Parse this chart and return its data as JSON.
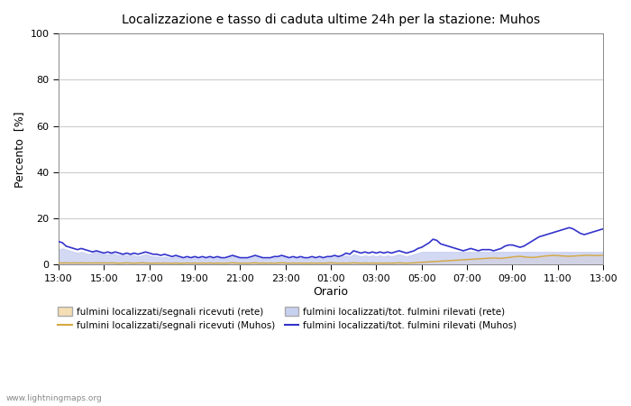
{
  "title": "Localizzazione e tasso di caduta ultime 24h per la stazione: Muhos",
  "xlabel": "Orario",
  "ylabel": "Percento  [%]",
  "ylim": [
    0,
    100
  ],
  "yticks": [
    0,
    20,
    40,
    60,
    80,
    100
  ],
  "xtick_labels": [
    "13:00",
    "15:00",
    "17:00",
    "19:00",
    "21:00",
    "23:00",
    "01:00",
    "03:00",
    "05:00",
    "07:00",
    "09:00",
    "11:00",
    "13:00"
  ],
  "background_color": "#ffffff",
  "plot_bg_color": "#ffffff",
  "grid_color": "#cccccc",
  "watermark": "www.lightningmaps.org",
  "fill_rete_color": "#f5deb3",
  "fill_muhos_color": "#c8d0f0",
  "line_segnali_rete_color": "#d4a843",
  "line_segnali_muhos_color": "#d4a843",
  "line_fulmini_muhos_color": "#3333cc",
  "legend": [
    {
      "label": "fulmini localizzati/segnali ricevuti (rete)",
      "type": "fill",
      "color": "#f5deb3"
    },
    {
      "label": "fulmini localizzati/segnali ricevuti (Muhos)",
      "type": "line",
      "color": "#d4a843"
    },
    {
      "label": "fulmini localizzati/tot. fulmini rilevati (rete)",
      "type": "fill",
      "color": "#c8d0f0"
    },
    {
      "label": "fulmini localizzati/tot. fulmini rilevati (Muhos)",
      "type": "line",
      "color": "#3333cc"
    }
  ],
  "n_points": 145,
  "segnali_rete": [
    1.2,
    1.1,
    1.3,
    1.0,
    1.1,
    1.2,
    1.3,
    1.1,
    1.0,
    1.1,
    1.2,
    1.3,
    1.1,
    1.0,
    1.1,
    1.2,
    1.0,
    1.1,
    1.2,
    1.1,
    1.0,
    1.1,
    1.2,
    1.1,
    1.0,
    1.0,
    1.1,
    1.0,
    1.1,
    1.0,
    1.0,
    1.1,
    1.0,
    1.0,
    1.1,
    1.0,
    1.1,
    1.0,
    1.1,
    1.0,
    1.1,
    1.0,
    1.1,
    1.0,
    1.0,
    1.1,
    1.2,
    1.1,
    1.0,
    1.1,
    1.0,
    1.1,
    1.2,
    1.0,
    1.1,
    1.0,
    1.1,
    1.0,
    1.1,
    1.2,
    1.1,
    1.0,
    1.1,
    1.0,
    1.1,
    1.0,
    1.0,
    1.1,
    1.0,
    1.1,
    1.0,
    1.1,
    1.2,
    1.1,
    1.0,
    1.1,
    1.0,
    1.1,
    1.2,
    1.1,
    1.0,
    1.1,
    1.0,
    1.1,
    1.0,
    1.1,
    1.0,
    1.1,
    1.0,
    1.1,
    1.2,
    1.1,
    1.0,
    1.1,
    1.2,
    1.3,
    1.4,
    1.5,
    1.6,
    1.7,
    1.8,
    1.9,
    2.0,
    2.1,
    2.2,
    2.3,
    2.4,
    2.5,
    2.6,
    2.7,
    2.8,
    2.9,
    3.0,
    3.1,
    3.2,
    3.3,
    3.2,
    3.1,
    3.3,
    3.5,
    3.7,
    3.9,
    4.0,
    3.8,
    3.6,
    3.5,
    3.6,
    3.8,
    4.0,
    4.2,
    4.3,
    4.4,
    4.3,
    4.2,
    4.1,
    4.0,
    4.1,
    4.2,
    4.3,
    4.4,
    4.5,
    4.4,
    4.3,
    4.4,
    4.5
  ],
  "segnali_muhos": [
    0.8,
    0.7,
    0.8,
    0.7,
    0.8,
    0.7,
    0.8,
    0.7,
    0.8,
    0.7,
    0.8,
    0.7,
    0.8,
    0.7,
    0.8,
    0.7,
    0.6,
    0.7,
    0.8,
    0.7,
    0.6,
    0.7,
    0.8,
    0.7,
    0.6,
    0.6,
    0.7,
    0.6,
    0.7,
    0.6,
    0.6,
    0.7,
    0.6,
    0.6,
    0.7,
    0.6,
    0.7,
    0.6,
    0.7,
    0.6,
    0.7,
    0.6,
    0.7,
    0.6,
    0.6,
    0.7,
    0.8,
    0.7,
    0.6,
    0.7,
    0.6,
    0.7,
    0.8,
    0.6,
    0.7,
    0.6,
    0.7,
    0.6,
    0.7,
    0.8,
    0.7,
    0.6,
    0.7,
    0.6,
    0.7,
    0.6,
    0.6,
    0.7,
    0.6,
    0.7,
    0.6,
    0.7,
    0.8,
    0.7,
    0.6,
    0.7,
    0.6,
    0.7,
    0.8,
    0.7,
    0.6,
    0.7,
    0.6,
    0.7,
    0.6,
    0.7,
    0.6,
    0.7,
    0.6,
    0.7,
    0.8,
    0.7,
    0.6,
    0.7,
    0.8,
    0.9,
    1.0,
    1.1,
    1.2,
    1.3,
    1.4,
    1.5,
    1.6,
    1.7,
    1.8,
    1.9,
    2.0,
    2.1,
    2.2,
    2.3,
    2.4,
    2.5,
    2.6,
    2.7,
    2.8,
    2.9,
    2.8,
    2.7,
    2.9,
    3.1,
    3.3,
    3.5,
    3.6,
    3.4,
    3.2,
    3.1,
    3.2,
    3.4,
    3.6,
    3.8,
    3.9,
    4.0,
    3.9,
    3.8,
    3.7,
    3.6,
    3.7,
    3.8,
    3.9,
    4.0,
    4.1,
    4.0,
    3.9,
    4.0,
    4.1
  ],
  "fulmini_rete": [
    6.5,
    7.0,
    6.5,
    6.0,
    5.5,
    5.0,
    5.5,
    5.0,
    4.5,
    5.0,
    5.5,
    5.0,
    4.5,
    4.5,
    5.0,
    4.5,
    4.0,
    4.5,
    4.0,
    4.5,
    4.0,
    3.5,
    4.0,
    4.5,
    4.0,
    3.5,
    3.5,
    3.0,
    3.5,
    3.0,
    3.0,
    3.5,
    3.0,
    2.5,
    3.0,
    2.5,
    3.0,
    2.5,
    3.0,
    2.5,
    3.0,
    2.5,
    3.0,
    2.5,
    2.5,
    3.0,
    3.5,
    3.0,
    2.5,
    2.5,
    2.5,
    3.0,
    3.5,
    3.0,
    2.5,
    2.5,
    2.5,
    3.0,
    3.0,
    3.5,
    3.0,
    2.5,
    3.0,
    2.5,
    3.0,
    2.5,
    2.5,
    3.0,
    2.5,
    3.0,
    2.5,
    3.0,
    3.0,
    3.5,
    3.0,
    3.5,
    4.0,
    3.5,
    4.5,
    4.0,
    3.5,
    4.0,
    3.5,
    4.0,
    3.5,
    4.0,
    3.5,
    4.0,
    3.5,
    4.0,
    4.5,
    4.0,
    3.5,
    4.0,
    4.5,
    5.0,
    5.5,
    5.5,
    5.5,
    5.5,
    5.5,
    5.5,
    5.5,
    5.5,
    5.5,
    5.5,
    5.5,
    5.5,
    5.5,
    5.5,
    5.5,
    5.5,
    5.5,
    5.5,
    5.5,
    5.5,
    5.5,
    5.5,
    5.5,
    5.5,
    5.5,
    5.5,
    5.5,
    5.5,
    5.5,
    5.5,
    5.5,
    5.5,
    5.5,
    5.5,
    5.5,
    5.5,
    5.5,
    5.5,
    5.5,
    5.5,
    5.5,
    5.5,
    5.5,
    5.5,
    5.5,
    5.5,
    5.5,
    5.5,
    5.5
  ],
  "fulmini_muhos": [
    10.0,
    9.5,
    8.0,
    7.5,
    7.0,
    6.5,
    7.0,
    6.5,
    6.0,
    5.5,
    6.0,
    5.5,
    5.0,
    5.5,
    5.0,
    5.5,
    5.0,
    4.5,
    5.0,
    4.5,
    5.0,
    4.5,
    5.0,
    5.5,
    5.0,
    4.5,
    4.5,
    4.0,
    4.5,
    4.0,
    3.5,
    4.0,
    3.5,
    3.0,
    3.5,
    3.0,
    3.5,
    3.0,
    3.5,
    3.0,
    3.5,
    3.0,
    3.5,
    3.0,
    3.0,
    3.5,
    4.0,
    3.5,
    3.0,
    3.0,
    3.0,
    3.5,
    4.0,
    3.5,
    3.0,
    3.0,
    3.0,
    3.5,
    3.5,
    4.0,
    3.5,
    3.0,
    3.5,
    3.0,
    3.5,
    3.0,
    3.0,
    3.5,
    3.0,
    3.5,
    3.0,
    3.5,
    3.5,
    4.0,
    3.5,
    4.0,
    5.0,
    4.5,
    6.0,
    5.5,
    5.0,
    5.5,
    5.0,
    5.5,
    5.0,
    5.5,
    5.0,
    5.5,
    5.0,
    5.5,
    6.0,
    5.5,
    5.0,
    5.5,
    6.0,
    7.0,
    7.5,
    8.5,
    9.5,
    11.0,
    10.5,
    9.0,
    8.5,
    8.0,
    7.5,
    7.0,
    6.5,
    6.0,
    6.5,
    7.0,
    6.5,
    6.0,
    6.5,
    6.5,
    6.5,
    6.0,
    6.5,
    7.0,
    8.0,
    8.5,
    8.5,
    8.0,
    7.5,
    8.0,
    9.0,
    10.0,
    11.0,
    12.0,
    12.5,
    13.0,
    13.5,
    14.0,
    14.5,
    15.0,
    15.5,
    16.0,
    15.5,
    14.5,
    13.5,
    13.0,
    13.5,
    14.0,
    14.5,
    15.0,
    15.5
  ]
}
